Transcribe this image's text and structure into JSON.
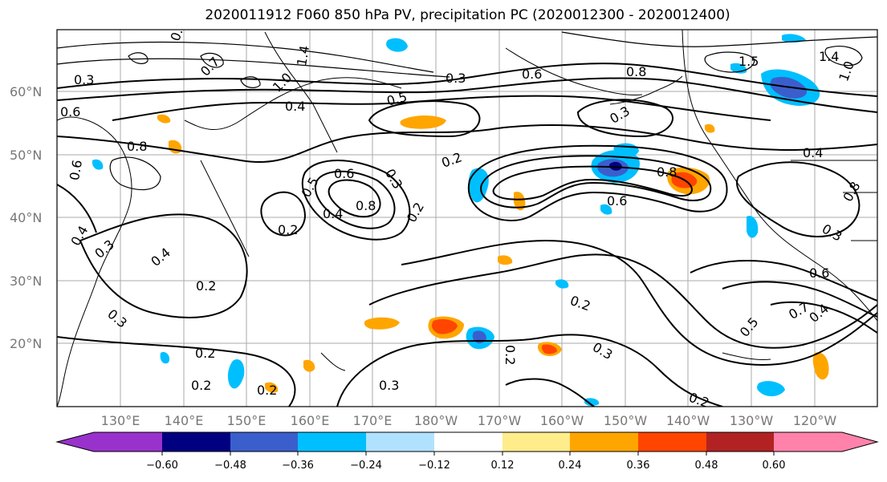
{
  "title": "2020011912 F060 850 hPa PV, precipitation PC (2020012300 - 2020012400)",
  "axes": {
    "lat_labels": [
      "60°N",
      "50°N",
      "40°N",
      "30°N",
      "20°N"
    ],
    "lon_labels": [
      "130°E",
      "140°E",
      "150°E",
      "160°E",
      "170°E",
      "180°W",
      "170°W",
      "160°W",
      "150°W",
      "140°W",
      "130°W",
      "120°W"
    ]
  },
  "colorbar": {
    "tick_labels": [
      "−0.60",
      "−0.48",
      "−0.36",
      "−0.24",
      "−0.12",
      "0.12",
      "0.24",
      "0.36",
      "0.48",
      "0.60"
    ],
    "colors": [
      "#9932cc",
      "#000080",
      "#3a5fcd",
      "#00bfff",
      "#b0e2ff",
      "#ffffff",
      "#ffec8b",
      "#ffa500",
      "#ff4500",
      "#b22222",
      "#ff82ab"
    ]
  },
  "contour_labels": [
    "0.8",
    "0.7",
    "0.3",
    "0.6",
    "1.0",
    "1.4",
    "0.4",
    "0.5",
    "0.3",
    "0.6",
    "0.8",
    "0.3",
    "1.5",
    "1.4",
    "1.0",
    "0.8",
    "0.6",
    "0.6",
    "0.5",
    "0.2",
    "0.8",
    "0.6",
    "0.8",
    "0.4",
    "0.3",
    "0.2",
    "0.4",
    "0.2",
    "0.4",
    "0.8",
    "0.2",
    "0.3",
    "0.2",
    "0.2",
    "0.2",
    "0.3",
    "0.3",
    "0.2",
    "0.3",
    "0.2",
    "0.6",
    "0.7",
    "0.5",
    "0.4",
    "0.3",
    "0.4",
    "0.2"
  ]
}
